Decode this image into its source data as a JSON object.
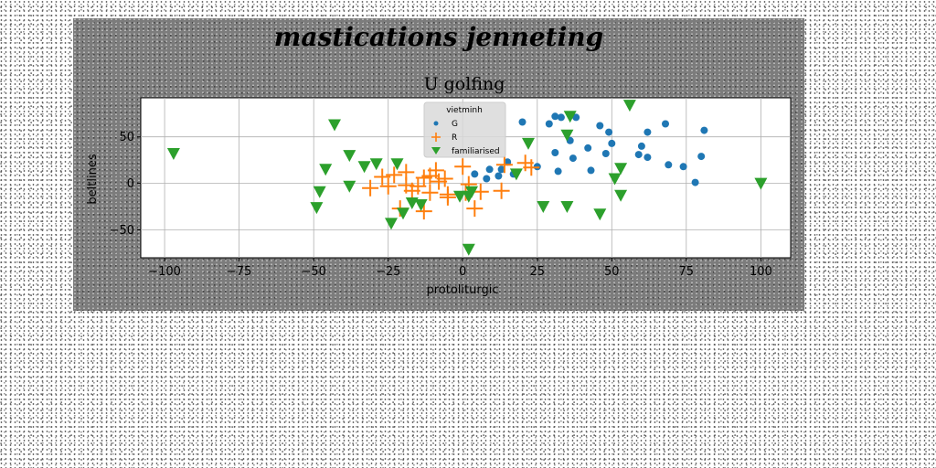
{
  "colors": {
    "G": "#1f77b4",
    "R": "#ff7f0e",
    "familiarised": "#2ca02c",
    "figure_bg": "#7c7c7c"
  },
  "chart_data": {
    "type": "scatter",
    "suptitle": "mastications jenneting",
    "title": "U golfing",
    "xlabel": "protoliturgic",
    "ylabel": "beltlines",
    "xlim": [
      -108,
      110
    ],
    "ylim": [
      -80,
      92
    ],
    "xticks": [
      -100,
      -75,
      -50,
      -25,
      0,
      25,
      50,
      75,
      100
    ],
    "yticks": [
      -50,
      0,
      50
    ],
    "xtick_labels": [
      "−100",
      "−75",
      "−50",
      "−25",
      "0",
      "25",
      "50",
      "75",
      "100"
    ],
    "ytick_labels": [
      "−50",
      "0",
      "50"
    ],
    "grid": true,
    "legend": {
      "title": "vietminh",
      "placement": "upper center"
    },
    "series": [
      {
        "name": "G",
        "marker": "circle",
        "points": [
          [
            31,
            72
          ],
          [
            33,
            71
          ],
          [
            38,
            71
          ],
          [
            20,
            66
          ],
          [
            46,
            62
          ],
          [
            29,
            64
          ],
          [
            68,
            64
          ],
          [
            81,
            57
          ],
          [
            62,
            55
          ],
          [
            49,
            55
          ],
          [
            36,
            46
          ],
          [
            50,
            43
          ],
          [
            42,
            38
          ],
          [
            60,
            40
          ],
          [
            31,
            33
          ],
          [
            48,
            32
          ],
          [
            59,
            31
          ],
          [
            62,
            28
          ],
          [
            37,
            27
          ],
          [
            25,
            18
          ],
          [
            32,
            13
          ],
          [
            43,
            14
          ],
          [
            69,
            20
          ],
          [
            74,
            18
          ],
          [
            80,
            29
          ],
          [
            78,
            1
          ],
          [
            13,
            15
          ],
          [
            9,
            15
          ],
          [
            15,
            23
          ],
          [
            12,
            8
          ],
          [
            8,
            5
          ],
          [
            4,
            10
          ],
          [
            17,
            10
          ]
        ]
      },
      {
        "name": "R",
        "marker": "plus",
        "points": [
          [
            -27,
            7
          ],
          [
            -23,
            9
          ],
          [
            -19,
            12
          ],
          [
            -13,
            6
          ],
          [
            -11,
            8
          ],
          [
            -9,
            14
          ],
          [
            -8,
            2
          ],
          [
            -6,
            5
          ],
          [
            0,
            18
          ],
          [
            2,
            -1
          ],
          [
            -25,
            -3
          ],
          [
            -19,
            -2
          ],
          [
            -15,
            -3
          ],
          [
            -31,
            -5
          ],
          [
            -17,
            -8
          ],
          [
            -11,
            -10
          ],
          [
            -5,
            -12
          ],
          [
            1,
            -10
          ],
          [
            13,
            -8
          ],
          [
            21,
            22
          ],
          [
            23,
            17
          ],
          [
            14,
            20
          ],
          [
            -21,
            -27
          ],
          [
            -13,
            -30
          ],
          [
            4,
            -27
          ],
          [
            -5,
            -15
          ],
          [
            6,
            -9
          ]
        ]
      },
      {
        "name": "familiarised",
        "marker": "triangle-down",
        "points": [
          [
            -97,
            32
          ],
          [
            -43,
            63
          ],
          [
            -38,
            30
          ],
          [
            -46,
            15
          ],
          [
            -33,
            18
          ],
          [
            -29,
            21
          ],
          [
            -22,
            21
          ],
          [
            -38,
            -3
          ],
          [
            -48,
            -9
          ],
          [
            -49,
            -26
          ],
          [
            -24,
            -43
          ],
          [
            -20,
            -32
          ],
          [
            -17,
            -21
          ],
          [
            -14,
            -23
          ],
          [
            -1,
            -14
          ],
          [
            2,
            -14
          ],
          [
            3,
            -9
          ],
          [
            2,
            -71
          ],
          [
            18,
            10
          ],
          [
            22,
            43
          ],
          [
            35,
            52
          ],
          [
            36,
            72
          ],
          [
            56,
            84
          ],
          [
            51,
            5
          ],
          [
            53,
            16
          ],
          [
            53,
            -13
          ],
          [
            46,
            -33
          ],
          [
            35,
            -25
          ],
          [
            27,
            -25
          ],
          [
            100,
            0
          ]
        ]
      }
    ]
  }
}
